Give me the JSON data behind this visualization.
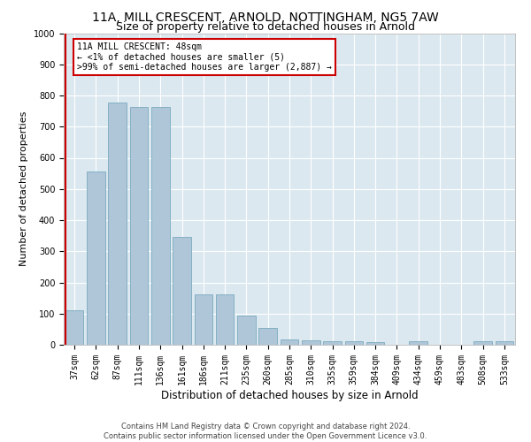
{
  "title": "11A, MILL CRESCENT, ARNOLD, NOTTINGHAM, NG5 7AW",
  "subtitle": "Size of property relative to detached houses in Arnold",
  "xlabel": "Distribution of detached houses by size in Arnold",
  "ylabel": "Number of detached properties",
  "categories": [
    "37sqm",
    "62sqm",
    "87sqm",
    "111sqm",
    "136sqm",
    "161sqm",
    "186sqm",
    "211sqm",
    "235sqm",
    "260sqm",
    "285sqm",
    "310sqm",
    "335sqm",
    "359sqm",
    "384sqm",
    "409sqm",
    "434sqm",
    "459sqm",
    "483sqm",
    "508sqm",
    "533sqm"
  ],
  "values": [
    112,
    555,
    778,
    762,
    762,
    345,
    163,
    163,
    95,
    55,
    18,
    14,
    12,
    10,
    8,
    0,
    10,
    0,
    0,
    10,
    10
  ],
  "bar_color": "#aec6d8",
  "bar_edge_color": "#7aaabf",
  "highlight_color": "#cc0000",
  "annotation_title": "11A MILL CRESCENT: 48sqm",
  "annotation_line1": "← <1% of detached houses are smaller (5)",
  "annotation_line2": ">99% of semi-detached houses are larger (2,887) →",
  "annotation_box_color": "#ffffff",
  "annotation_box_edge": "#cc0000",
  "ylim": [
    0,
    1000
  ],
  "yticks": [
    0,
    100,
    200,
    300,
    400,
    500,
    600,
    700,
    800,
    900,
    1000
  ],
  "plot_bg_color": "#dce8f0",
  "footer_line1": "Contains HM Land Registry data © Crown copyright and database right 2024.",
  "footer_line2": "Contains public sector information licensed under the Open Government Licence v3.0.",
  "title_fontsize": 10,
  "subtitle_fontsize": 9,
  "ylabel_fontsize": 8,
  "xlabel_fontsize": 8.5,
  "tick_fontsize": 7,
  "annotation_fontsize": 7,
  "footer_fontsize": 6
}
